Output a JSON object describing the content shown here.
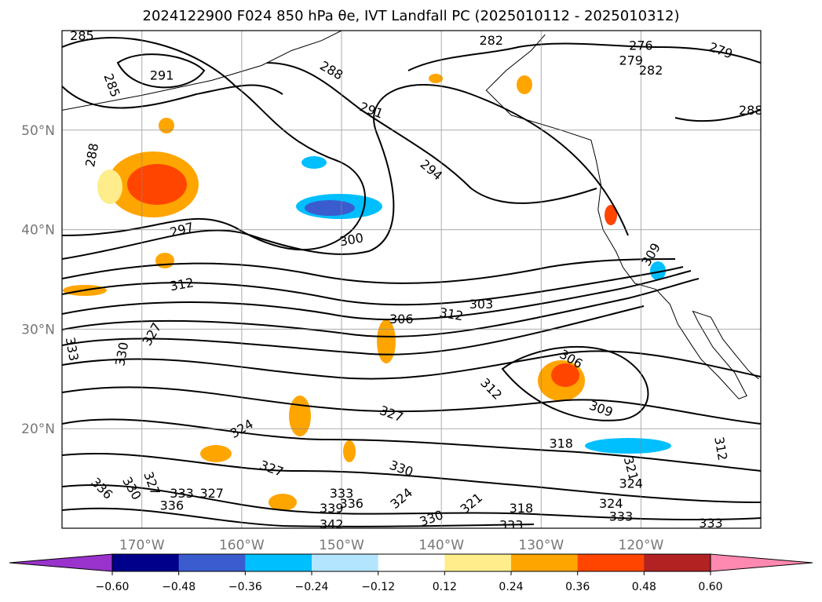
{
  "title": "2024122900 F024 850 hPa θe, IVT Landfall PC (2025010112 - 2025010312)",
  "map": {
    "lon_range": [
      -178,
      -108
    ],
    "lat_range": [
      10,
      60
    ],
    "lon_ticks": [
      {
        "lon": -170,
        "label": "170°W"
      },
      {
        "lon": -160,
        "label": "160°W"
      },
      {
        "lon": -150,
        "label": "150°W"
      },
      {
        "lon": -140,
        "label": "140°W"
      },
      {
        "lon": -130,
        "label": "130°W"
      },
      {
        "lon": -120,
        "label": "120°W"
      }
    ],
    "lat_ticks": [
      {
        "lat": 50,
        "label": "50°N"
      },
      {
        "lat": 40,
        "label": "40°N"
      },
      {
        "lat": 30,
        "label": "30°N"
      },
      {
        "lat": 20,
        "label": "20°N"
      }
    ],
    "grid": true,
    "contour_labels": [
      {
        "text": "285",
        "lon": -176,
        "lat": 59.5
      },
      {
        "text": "291",
        "lon": -168,
        "lat": 55.5
      },
      {
        "text": "285",
        "lon": -173,
        "lat": 54.5,
        "rot": 70
      },
      {
        "text": "288",
        "lon": -175,
        "lat": 47.5,
        "rot": -80
      },
      {
        "text": "288",
        "lon": -151,
        "lat": 56,
        "rot": 30
      },
      {
        "text": "291",
        "lon": -147,
        "lat": 52,
        "rot": 20
      },
      {
        "text": "294",
        "lon": -141,
        "lat": 46,
        "rot": 40
      },
      {
        "text": "282",
        "lon": -135,
        "lat": 59
      },
      {
        "text": "276",
        "lon": -120,
        "lat": 58.5
      },
      {
        "text": "279",
        "lon": -121,
        "lat": 57
      },
      {
        "text": "279",
        "lon": -112,
        "lat": 58,
        "rot": 20
      },
      {
        "text": "282",
        "lon": -119,
        "lat": 56
      },
      {
        "text": "288",
        "lon": -109,
        "lat": 52
      },
      {
        "text": "297",
        "lon": -166,
        "lat": 40,
        "rot": -15
      },
      {
        "text": "300",
        "lon": -149,
        "lat": 39,
        "rot": -10
      },
      {
        "text": "309",
        "lon": -119,
        "lat": 37.5,
        "rot": -60
      },
      {
        "text": "312",
        "lon": -166,
        "lat": 34.5,
        "rot": -10
      },
      {
        "text": "303",
        "lon": -136,
        "lat": 32.5
      },
      {
        "text": "312",
        "lon": -139,
        "lat": 31.5,
        "rot": 10
      },
      {
        "text": "306",
        "lon": -144,
        "lat": 31
      },
      {
        "text": "327",
        "lon": -169,
        "lat": 29.5,
        "rot": -60
      },
      {
        "text": "333",
        "lon": -177,
        "lat": 28,
        "rot": 80
      },
      {
        "text": "330",
        "lon": -172,
        "lat": 27.5,
        "rot": -80
      },
      {
        "text": "306",
        "lon": -127,
        "lat": 27,
        "rot": 30
      },
      {
        "text": "312",
        "lon": -135,
        "lat": 24,
        "rot": 45
      },
      {
        "text": "327",
        "lon": -145,
        "lat": 21.5,
        "rot": 20
      },
      {
        "text": "309",
        "lon": -124,
        "lat": 22,
        "rot": 20
      },
      {
        "text": "324",
        "lon": -160,
        "lat": 20,
        "rot": -30
      },
      {
        "text": "318",
        "lon": -128,
        "lat": 18.5
      },
      {
        "text": "312",
        "lon": -112,
        "lat": 18,
        "rot": 80
      },
      {
        "text": "327",
        "lon": -157,
        "lat": 16,
        "rot": 20
      },
      {
        "text": "330",
        "lon": -144,
        "lat": 16,
        "rot": 20
      },
      {
        "text": "321",
        "lon": -121,
        "lat": 16,
        "rot": 75
      },
      {
        "text": "324",
        "lon": -121,
        "lat": 14.5
      },
      {
        "text": "336",
        "lon": -174,
        "lat": 14,
        "rot": 45
      },
      {
        "text": "330",
        "lon": -171,
        "lat": 14,
        "rot": 60
      },
      {
        "text": "327",
        "lon": -169,
        "lat": 14.5,
        "rot": 70
      },
      {
        "text": "333",
        "lon": -166,
        "lat": 13.5
      },
      {
        "text": "327",
        "lon": -163,
        "lat": 13.5
      },
      {
        "text": "333",
        "lon": -150,
        "lat": 13.5
      },
      {
        "text": "336",
        "lon": -149,
        "lat": 12.5
      },
      {
        "text": "324",
        "lon": -144,
        "lat": 13,
        "rot": -40
      },
      {
        "text": "321",
        "lon": -137,
        "lat": 12.5,
        "rot": -40
      },
      {
        "text": "318",
        "lon": -132,
        "lat": 12
      },
      {
        "text": "324",
        "lon": -123,
        "lat": 12.5
      },
      {
        "text": "333",
        "lon": -122,
        "lat": 11.2
      },
      {
        "text": "339",
        "lon": -151,
        "lat": 12
      },
      {
        "text": "336",
        "lon": -167,
        "lat": 12.3
      },
      {
        "text": "342",
        "lon": -151,
        "lat": 10.4
      },
      {
        "text": "330",
        "lon": -141,
        "lat": 11,
        "rot": -20
      },
      {
        "text": "333",
        "lon": -133,
        "lat": 10.3
      },
      {
        "text": "333",
        "lon": -113,
        "lat": 10.5
      }
    ],
    "coast": {
      "north_america": [
        [
          -129.6,
          59.6
        ],
        [
          -131,
          58
        ],
        [
          -133.5,
          56
        ],
        [
          -135.5,
          54
        ],
        [
          -133,
          51.5
        ],
        [
          -128,
          50
        ],
        [
          -125,
          49
        ],
        [
          -124.5,
          47
        ],
        [
          -124,
          44.5
        ],
        [
          -124.3,
          42
        ],
        [
          -123.8,
          40
        ],
        [
          -122.5,
          37.8
        ],
        [
          -121.8,
          36.2
        ],
        [
          -120.6,
          34.6
        ],
        [
          -118.5,
          34
        ],
        [
          -117.1,
          32.5
        ],
        [
          -116.3,
          30.5
        ],
        [
          -115,
          28.5
        ],
        [
          -114,
          27
        ],
        [
          -112.2,
          25.2
        ],
        [
          -110.2,
          23
        ],
        [
          -109.4,
          23.3
        ],
        [
          -110.6,
          25.6
        ],
        [
          -112.8,
          28.2
        ],
        [
          -114.2,
          30.6
        ],
        [
          -114.8,
          31.8
        ],
        [
          -113,
          31.2
        ],
        [
          -111.8,
          29
        ],
        [
          -110.6,
          27.5
        ],
        [
          -109.2,
          25.8
        ],
        [
          -108.2,
          25
        ]
      ],
      "alaska": [
        [
          -178,
          52
        ],
        [
          -170,
          53.5
        ],
        [
          -163,
          55
        ],
        [
          -158,
          56.5
        ],
        [
          -155,
          58
        ],
        [
          -152,
          59
        ],
        [
          -150,
          60
        ]
      ]
    }
  },
  "colorbar": {
    "ticks": [
      "−0.60",
      "−0.48",
      "−0.36",
      "−0.24",
      "−0.12",
      "0.12",
      "0.24",
      "0.36",
      "0.48",
      "0.60"
    ],
    "colors": {
      "under": "#9933cc",
      "bins": [
        "#00008b",
        "#3a5ccf",
        "#00bfff",
        "#b3e5ff",
        "#ffffff",
        "#ffec8b",
        "#ffa500",
        "#ff4500",
        "#b22222"
      ],
      "over": "#ff89b0"
    }
  }
}
